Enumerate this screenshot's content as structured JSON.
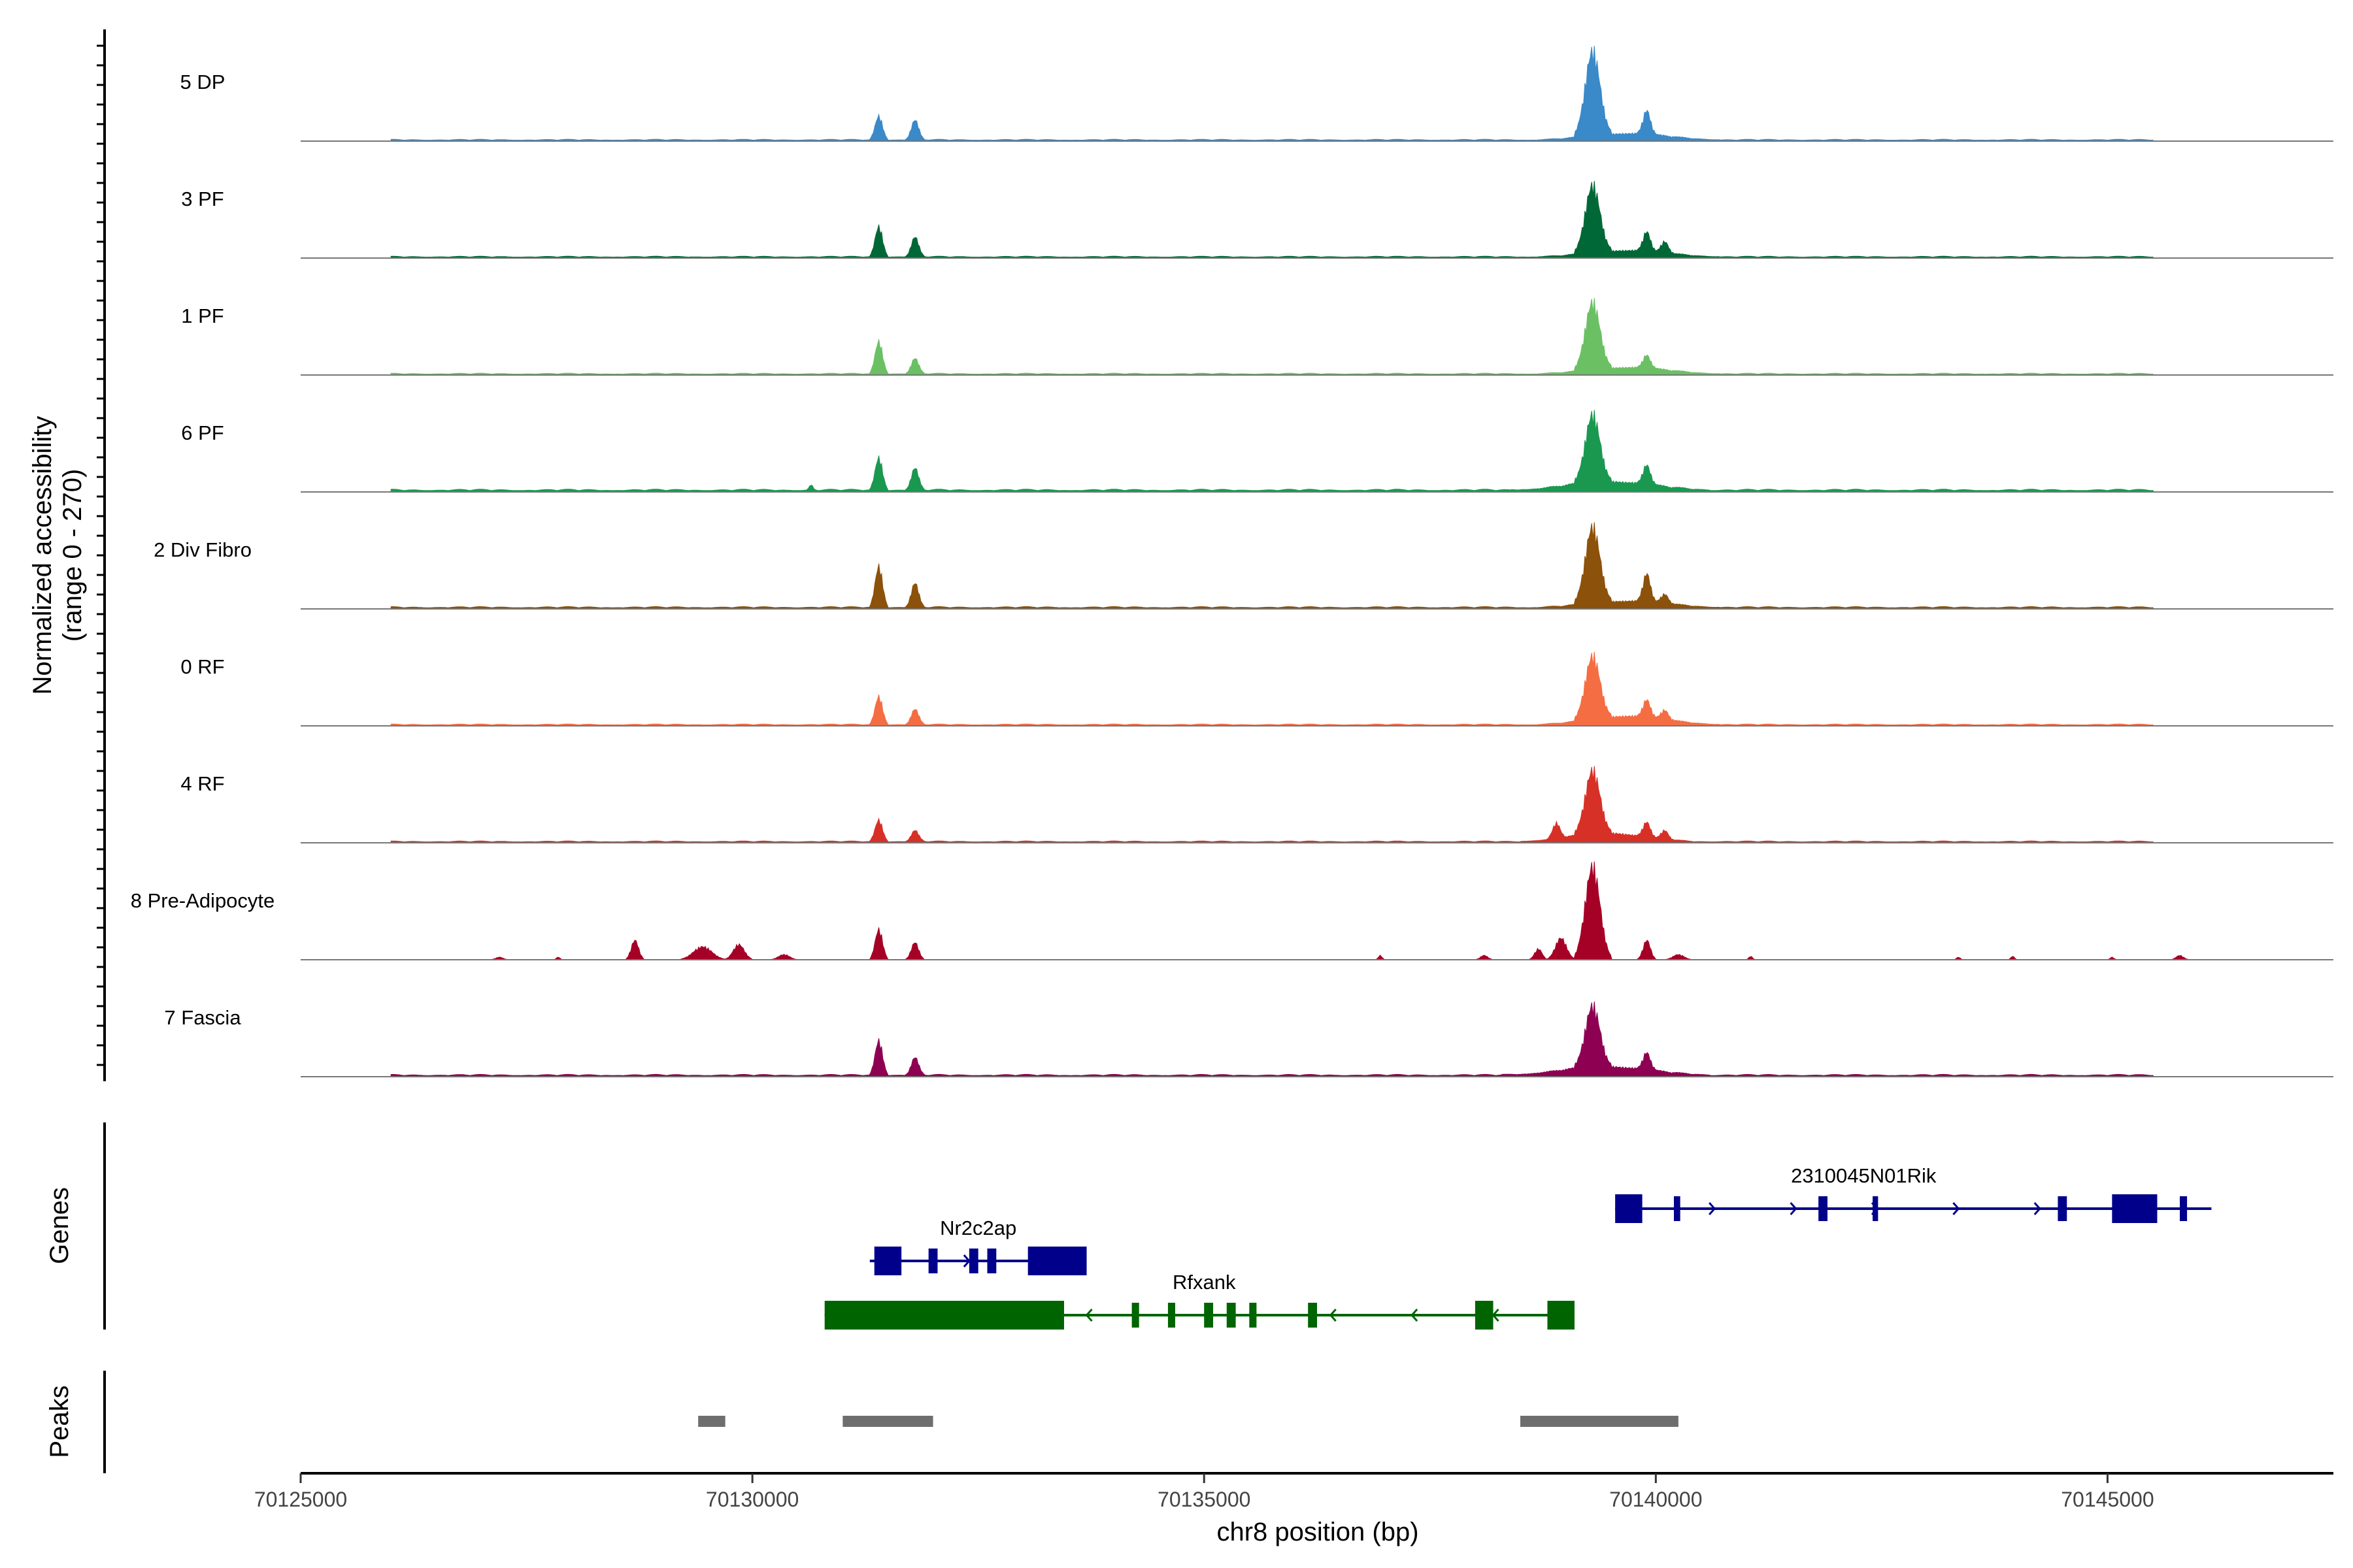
{
  "chart_data": {
    "type": "area",
    "title": "",
    "xlabel": "chr8 position (bp)",
    "ylabel_line1": "Normalized accessibility",
    "ylabel_line2": "(range 0 - 270)",
    "ylim": [
      0,
      270
    ],
    "xlim": [
      70125000,
      70147500
    ],
    "x_ticks": [
      70125000,
      70130000,
      70135000,
      70140000,
      70145000
    ],
    "x_tick_labels": [
      "70125000",
      "70130000",
      "70135000",
      "70140000",
      "70145000"
    ],
    "panel_labels": {
      "genes": "Genes",
      "peaks": "Peaks"
    },
    "series": [
      {
        "name": "5 DP",
        "color": "#3A89C9",
        "peaks": [
          [
            70126000,
            70145500,
            4
          ],
          [
            70131300,
            70131500,
            55
          ],
          [
            70131700,
            70131900,
            45
          ],
          [
            70138700,
            70140700,
            15
          ],
          [
            70139100,
            70139500,
            195
          ],
          [
            70139800,
            70140000,
            55
          ]
        ]
      },
      {
        "name": "3 PF",
        "color": "#006837",
        "peaks": [
          [
            70126000,
            70145500,
            4
          ],
          [
            70131300,
            70131500,
            70
          ],
          [
            70131700,
            70131900,
            45
          ],
          [
            70138700,
            70140700,
            15
          ],
          [
            70139100,
            70139500,
            155
          ],
          [
            70139800,
            70140000,
            45
          ],
          [
            70140000,
            70140200,
            25
          ]
        ]
      },
      {
        "name": "1 PF",
        "color": "#6BC064",
        "peaks": [
          [
            70126000,
            70145500,
            4
          ],
          [
            70131300,
            70131500,
            75
          ],
          [
            70131700,
            70131900,
            35
          ],
          [
            70138700,
            70140700,
            15
          ],
          [
            70139100,
            70139500,
            155
          ],
          [
            70139800,
            70140000,
            30
          ]
        ]
      },
      {
        "name": "6 PF",
        "color": "#1A9850",
        "peaks": [
          [
            70126000,
            70145500,
            6
          ],
          [
            70130600,
            70130700,
            12
          ],
          [
            70131300,
            70131500,
            75
          ],
          [
            70131700,
            70131900,
            50
          ],
          [
            70138400,
            70140600,
            20
          ],
          [
            70139100,
            70139500,
            155
          ],
          [
            70139800,
            70140000,
            45
          ]
        ]
      },
      {
        "name": "2 Div Fibro",
        "color": "#8C510A",
        "peaks": [
          [
            70126000,
            70145500,
            5
          ],
          [
            70131300,
            70131500,
            95
          ],
          [
            70131700,
            70131900,
            55
          ],
          [
            70138700,
            70140700,
            15
          ],
          [
            70139100,
            70139500,
            175
          ],
          [
            70139800,
            70140000,
            65
          ],
          [
            70140000,
            70140200,
            20
          ]
        ]
      },
      {
        "name": "0 RF",
        "color": "#F46D43",
        "peaks": [
          [
            70126000,
            70145500,
            4
          ],
          [
            70131300,
            70131500,
            65
          ],
          [
            70131700,
            70131900,
            35
          ],
          [
            70138700,
            70140700,
            20
          ],
          [
            70139100,
            70139500,
            145
          ],
          [
            70139800,
            70140000,
            40
          ],
          [
            70140000,
            70140200,
            20
          ]
        ]
      },
      {
        "name": "4 RF",
        "color": "#D73027",
        "peaks": [
          [
            70126000,
            70145500,
            4
          ],
          [
            70131300,
            70131500,
            50
          ],
          [
            70131700,
            70131900,
            25
          ],
          [
            70138500,
            70140400,
            20
          ],
          [
            70138800,
            70139000,
            35
          ],
          [
            70139100,
            70139500,
            145
          ],
          [
            70139800,
            70140000,
            35
          ],
          [
            70140000,
            70140200,
            20
          ]
        ]
      },
      {
        "name": "8 Pre-Adipocyte",
        "color": "#A50026",
        "peaks": [
          [
            70127100,
            70127300,
            6
          ],
          [
            70127800,
            70127900,
            6
          ],
          [
            70128600,
            70128800,
            45
          ],
          [
            70129200,
            70129700,
            30
          ],
          [
            70129700,
            70130000,
            35
          ],
          [
            70130200,
            70130500,
            12
          ],
          [
            70131300,
            70131500,
            70
          ],
          [
            70131700,
            70131900,
            40
          ],
          [
            70136900,
            70137000,
            10
          ],
          [
            70138000,
            70138200,
            10
          ],
          [
            70138600,
            70138800,
            25
          ],
          [
            70138800,
            70139100,
            50
          ],
          [
            70139100,
            70139500,
            215
          ],
          [
            70139800,
            70140000,
            45
          ],
          [
            70140100,
            70140400,
            12
          ],
          [
            70141000,
            70141100,
            8
          ],
          [
            70143300,
            70143400,
            6
          ],
          [
            70143900,
            70144000,
            8
          ],
          [
            70145000,
            70145100,
            6
          ],
          [
            70145700,
            70145900,
            10
          ]
        ]
      },
      {
        "name": "7 Fascia",
        "color": "#8E0152",
        "peaks": [
          [
            70126000,
            70145500,
            5
          ],
          [
            70131300,
            70131500,
            80
          ],
          [
            70131700,
            70131900,
            40
          ],
          [
            70138300,
            70140600,
            20
          ],
          [
            70139100,
            70139500,
            140
          ],
          [
            70139800,
            70140000,
            40
          ]
        ]
      }
    ],
    "genes": [
      {
        "name": "2310045N01Rik",
        "strand": "+",
        "start": 70139550,
        "end": 70146150,
        "row": 0,
        "exons": [
          [
            70139550,
            70139850
          ],
          [
            70140200,
            70140270
          ],
          [
            70141800,
            70141900
          ],
          [
            70142400,
            70142460
          ],
          [
            70144450,
            70144550
          ],
          [
            70145050,
            70145550
          ],
          [
            70145800,
            70145880
          ]
        ]
      },
      {
        "name": "Nr2c2ap",
        "strand": "+",
        "start": 70131300,
        "end": 70133700,
        "row": 1,
        "exons": [
          [
            70131350,
            70131650
          ],
          [
            70131950,
            70132050
          ],
          [
            70132400,
            70132500
          ],
          [
            70132600,
            70132700
          ],
          [
            70133050,
            70133700
          ]
        ]
      },
      {
        "name": "Rfxank",
        "strand": "-",
        "start": 70130800,
        "end": 70139100,
        "row": 2,
        "exons": [
          [
            70130800,
            70133450
          ],
          [
            70134200,
            70134280
          ],
          [
            70134600,
            70134680
          ],
          [
            70135000,
            70135100
          ],
          [
            70135250,
            70135350
          ],
          [
            70135500,
            70135580
          ],
          [
            70136150,
            70136250
          ],
          [
            70138000,
            70138200
          ],
          [
            70138800,
            70139100
          ]
        ]
      }
    ],
    "peak_regions": [
      [
        70129400,
        70129700
      ],
      [
        70131000,
        70132000
      ],
      [
        70138500,
        70140250
      ]
    ]
  }
}
